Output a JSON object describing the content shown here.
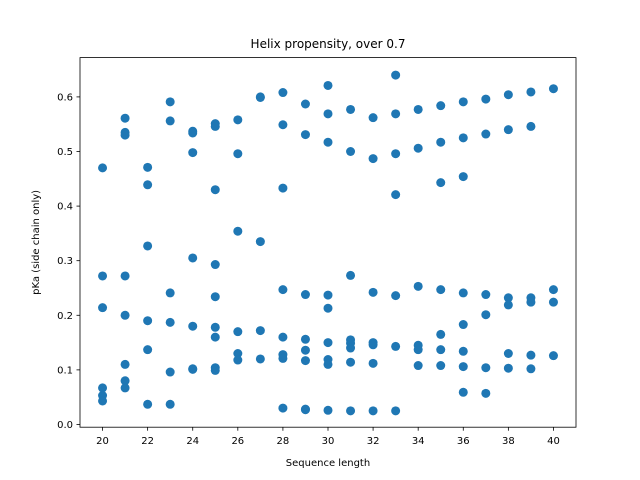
{
  "chart_data": {
    "type": "scatter",
    "title": "Helix propensity, over 0.7",
    "xlabel": "Sequence length",
    "ylabel": "pKa (side chain only)",
    "xlim": [
      19.0,
      41.0
    ],
    "ylim": [
      -0.005,
      0.672
    ],
    "xticks": [
      20,
      22,
      24,
      26,
      28,
      30,
      32,
      34,
      36,
      38,
      40
    ],
    "yticks": [
      0.0,
      0.1,
      0.2,
      0.3,
      0.4,
      0.5,
      0.6
    ],
    "ytick_labels": [
      "0.0",
      "0.1",
      "0.2",
      "0.3",
      "0.4",
      "0.5",
      "0.6"
    ],
    "grid": false,
    "marker_color": "#1f77b4",
    "series": [
      {
        "x": [
          20,
          20,
          20,
          20,
          20,
          20,
          21,
          21,
          21,
          21,
          21,
          21,
          21,
          21,
          22,
          22,
          22,
          22,
          22,
          22,
          23,
          23,
          23,
          23,
          23,
          23,
          24,
          24,
          24,
          24,
          24,
          24,
          24,
          25,
          25,
          25,
          25,
          25,
          25,
          25,
          25,
          25,
          26,
          26,
          26,
          26,
          26,
          26,
          27,
          27,
          27,
          27,
          27,
          28,
          28,
          28,
          28,
          28,
          28,
          28,
          28,
          29,
          29,
          29,
          29,
          29,
          29,
          29,
          29,
          30,
          30,
          30,
          30,
          30,
          30,
          30,
          30,
          30,
          31,
          31,
          31,
          31,
          31,
          31,
          31,
          31,
          32,
          32,
          32,
          32,
          32,
          32,
          32,
          33,
          33,
          33,
          33,
          33,
          33,
          33,
          34,
          34,
          34,
          34,
          34,
          34,
          35,
          35,
          35,
          35,
          35,
          35,
          35,
          36,
          36,
          36,
          36,
          36,
          36,
          36,
          36,
          37,
          37,
          37,
          37,
          37,
          37,
          38,
          38,
          38,
          38,
          38,
          38,
          39,
          39,
          39,
          39,
          39,
          39,
          40,
          40,
          40,
          40
        ],
        "y": [
          0.47,
          0.272,
          0.214,
          0.067,
          0.053,
          0.043,
          0.561,
          0.535,
          0.53,
          0.272,
          0.2,
          0.11,
          0.08,
          0.067,
          0.471,
          0.439,
          0.327,
          0.19,
          0.137,
          0.037,
          0.591,
          0.556,
          0.241,
          0.187,
          0.096,
          0.037,
          0.537,
          0.534,
          0.498,
          0.305,
          0.18,
          0.102,
          0.101,
          0.551,
          0.546,
          0.43,
          0.293,
          0.234,
          0.178,
          0.16,
          0.104,
          0.099,
          0.558,
          0.496,
          0.354,
          0.17,
          0.13,
          0.118,
          0.6,
          0.599,
          0.335,
          0.172,
          0.12,
          0.608,
          0.549,
          0.433,
          0.247,
          0.16,
          0.128,
          0.121,
          0.03,
          0.587,
          0.531,
          0.238,
          0.156,
          0.136,
          0.117,
          0.028,
          0.027,
          0.621,
          0.569,
          0.517,
          0.237,
          0.213,
          0.15,
          0.119,
          0.11,
          0.026,
          0.577,
          0.5,
          0.273,
          0.155,
          0.149,
          0.14,
          0.114,
          0.025,
          0.562,
          0.487,
          0.242,
          0.15,
          0.146,
          0.112,
          0.025,
          0.64,
          0.569,
          0.496,
          0.421,
          0.236,
          0.143,
          0.025,
          0.577,
          0.506,
          0.253,
          0.145,
          0.137,
          0.108,
          0.584,
          0.517,
          0.443,
          0.247,
          0.165,
          0.137,
          0.108,
          0.591,
          0.525,
          0.454,
          0.241,
          0.183,
          0.134,
          0.106,
          0.059,
          0.596,
          0.532,
          0.238,
          0.201,
          0.104,
          0.057,
          0.604,
          0.54,
          0.232,
          0.219,
          0.13,
          0.103,
          0.609,
          0.546,
          0.232,
          0.224,
          0.127,
          0.102,
          0.615,
          0.247,
          0.224,
          0.126
        ]
      }
    ]
  }
}
